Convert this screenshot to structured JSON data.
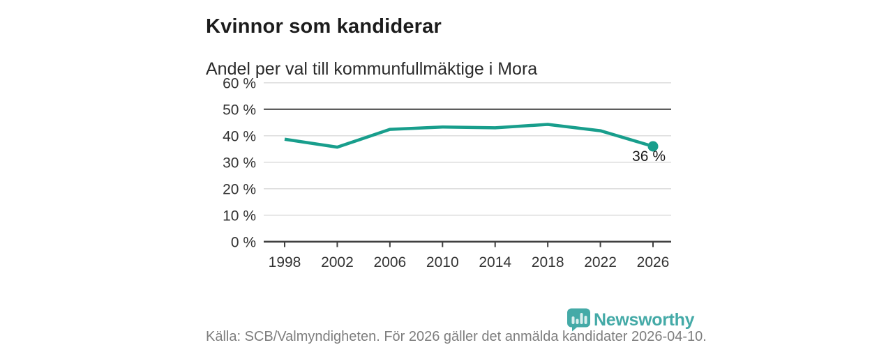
{
  "title": "Kvinnor som kandiderar",
  "subtitle": "Andel per val till kommunfullmäktige i Mora",
  "footer": {
    "source_text": "Källa: SCB/Valmyndigheten. För 2026 gäller det anmälda kandidater 2026-04-10.",
    "brand": "Newsworthy"
  },
  "colors": {
    "line": "#189e8c",
    "brand": "#35a3a0",
    "grid": "#d9d9d9",
    "axis": "#404040",
    "tick_text": "#333333",
    "title_text": "#1c1c1c",
    "muted_text": "#7e7e7e"
  },
  "chart_data": {
    "type": "line",
    "title": "Kvinnor som kandiderar",
    "subtitle": "Andel per val till kommunfullmäktige i Mora",
    "x": [
      1998,
      2002,
      2006,
      2010,
      2014,
      2018,
      2022,
      2026
    ],
    "x_tick_labels": [
      "1998",
      "2002",
      "2006",
      "2010",
      "2014",
      "2018",
      "2022",
      "2026"
    ],
    "values": [
      38.7,
      35.7,
      42.4,
      43.3,
      43.0,
      44.3,
      41.9,
      36
    ],
    "unit": "%",
    "ylim": [
      0,
      60
    ],
    "y_ticks": [
      {
        "value": 60,
        "label": "60 %"
      },
      {
        "value": 50,
        "label": "50 %"
      },
      {
        "value": 40,
        "label": "40 %"
      },
      {
        "value": 30,
        "label": "30 %"
      },
      {
        "value": 20,
        "label": "20 %"
      },
      {
        "value": 10,
        "label": "10 %"
      },
      {
        "value": 0,
        "label": "0 %"
      }
    ],
    "reference_line": 50,
    "end_label": "36 %",
    "grid": "horizontal",
    "legend": "none",
    "marker": "last-point-only"
  }
}
